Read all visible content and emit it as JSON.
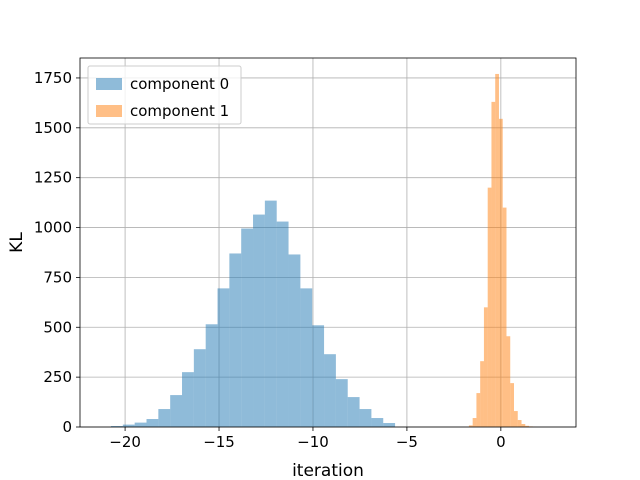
{
  "chart_data": {
    "type": "histogram",
    "title": "",
    "xlabel": "iteration",
    "ylabel": "KL",
    "xlim": [
      -22.4,
      4.0
    ],
    "ylim": [
      0,
      1850
    ],
    "xticks": [
      -20,
      -15,
      -10,
      -5,
      0
    ],
    "xtick_labels": [
      "−20",
      "−15",
      "−10",
      "−5",
      "0"
    ],
    "yticks": [
      0,
      250,
      500,
      750,
      1000,
      1250,
      1500,
      1750
    ],
    "ytick_labels": [
      "0",
      "250",
      "500",
      "750",
      "1000",
      "1250",
      "1500",
      "1750"
    ],
    "grid": true,
    "legend_position": "top-left",
    "series": [
      {
        "name": "component 0",
        "color": "#1f77b4",
        "alpha": 0.5,
        "bin_edges": [
          -20.75,
          -20.12,
          -19.49,
          -18.86,
          -18.23,
          -17.6,
          -16.97,
          -16.34,
          -15.71,
          -15.08,
          -14.45,
          -13.82,
          -13.19,
          -12.56,
          -11.93,
          -11.3,
          -10.67,
          -10.04,
          -9.41,
          -8.78,
          -8.15,
          -7.52,
          -6.89,
          -6.26,
          -5.63
        ],
        "counts": [
          5,
          12,
          22,
          40,
          90,
          160,
          275,
          390,
          515,
          695,
          870,
          995,
          1065,
          1135,
          1030,
          865,
          695,
          510,
          365,
          240,
          150,
          90,
          45,
          20
        ]
      },
      {
        "name": "component 1",
        "color": "#ff7f0e",
        "alpha": 0.5,
        "bin_edges": [
          -1.7,
          -1.5,
          -1.3,
          -1.1,
          -0.9,
          -0.7,
          -0.5,
          -0.3,
          -0.1,
          0.1,
          0.3,
          0.5,
          0.7,
          0.9,
          1.1,
          1.3,
          1.5,
          1.7,
          1.9
        ],
        "counts": [
          8,
          45,
          170,
          330,
          600,
          1200,
          1630,
          1770,
          1545,
          1100,
          455,
          220,
          80,
          35,
          15,
          6,
          3,
          1
        ]
      }
    ]
  }
}
